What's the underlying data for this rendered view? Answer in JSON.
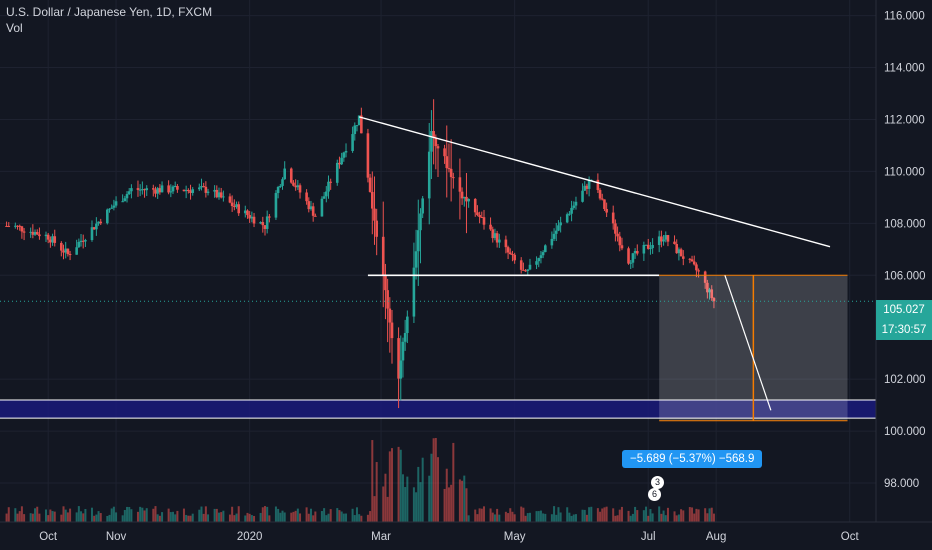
{
  "legend": {
    "symbol": "U.S. Dollar / Japanese Yen, 1D, FXCM",
    "indicator": "Vol"
  },
  "price_axis": {
    "ticks": [
      "116.000",
      "114.000",
      "112.000",
      "110.000",
      "108.000",
      "106.000",
      "102.000",
      "100.000",
      "98.000"
    ]
  },
  "time_axis": {
    "ticks": [
      "Oct",
      "Nov",
      "2020",
      "Mar",
      "May",
      "Jul",
      "Aug",
      "Oct"
    ]
  },
  "last_price": {
    "label": "105.027",
    "countdown": "17:30:57",
    "color": "#26a69a"
  },
  "measure": {
    "label": "−5.689 (−5.37%) −568.9"
  },
  "events": [
    {
      "label": "3"
    },
    {
      "label": "6"
    }
  ],
  "colors": {
    "background": "#131722",
    "up": "#26a69a",
    "down": "#ef5350",
    "zone": "#1a1a7a",
    "measure": "#2196f3",
    "rectangle_border": "#f57c00",
    "trendline": "#ffffff"
  },
  "chart_data": {
    "type": "candlestick",
    "symbol": "USDJPY",
    "timeframe": "1D",
    "source": "FXCM",
    "ylim": [
      96.5,
      116.6
    ],
    "x_range": [
      "2019-09-09",
      "2020-10-13"
    ],
    "series": [
      {
        "date": "2019-09-15",
        "close": 107.9
      },
      {
        "date": "2019-10-01",
        "close": 107.5
      },
      {
        "date": "2019-10-10",
        "close": 106.8
      },
      {
        "date": "2019-10-31",
        "close": 108.7
      },
      {
        "date": "2019-11-08",
        "close": 109.3
      },
      {
        "date": "2019-12-13",
        "close": 109.3
      },
      {
        "date": "2020-01-08",
        "close": 107.9
      },
      {
        "date": "2020-01-17",
        "close": 110.1
      },
      {
        "date": "2020-01-31",
        "close": 108.3
      },
      {
        "date": "2020-02-20",
        "close": 112.1
      },
      {
        "date": "2020-03-09",
        "close": 102.0
      },
      {
        "date": "2020-03-24",
        "close": 111.5
      },
      {
        "date": "2020-04-06",
        "close": 109.2
      },
      {
        "date": "2020-05-06",
        "close": 106.0
      },
      {
        "date": "2020-06-05",
        "close": 109.7
      },
      {
        "date": "2020-06-22",
        "close": 106.6
      },
      {
        "date": "2020-07-08",
        "close": 107.5
      },
      {
        "date": "2020-07-24",
        "close": 106.1
      },
      {
        "date": "2020-07-31",
        "close": 105.0
      }
    ],
    "drawings": {
      "descending_trendline": [
        {
          "date": "2020-02-20",
          "price": 112.1
        },
        {
          "date": "2020-09-22",
          "price": 107.1
        }
      ],
      "support_line": {
        "price": 106.0,
        "from": "2020-02-24",
        "to": "2020-07-06"
      },
      "target_zone": {
        "from": 100.5,
        "to": 101.2
      },
      "measure_rectangle": {
        "from_date": "2020-07-06",
        "to_date": "2020-09-30",
        "top": 106.0,
        "bottom": 100.4
      },
      "projection_path": [
        {
          "date": "2020-08-05",
          "price": 106.0
        },
        {
          "date": "2020-08-26",
          "price": 100.8
        }
      ]
    },
    "volume_scale": "relative"
  }
}
